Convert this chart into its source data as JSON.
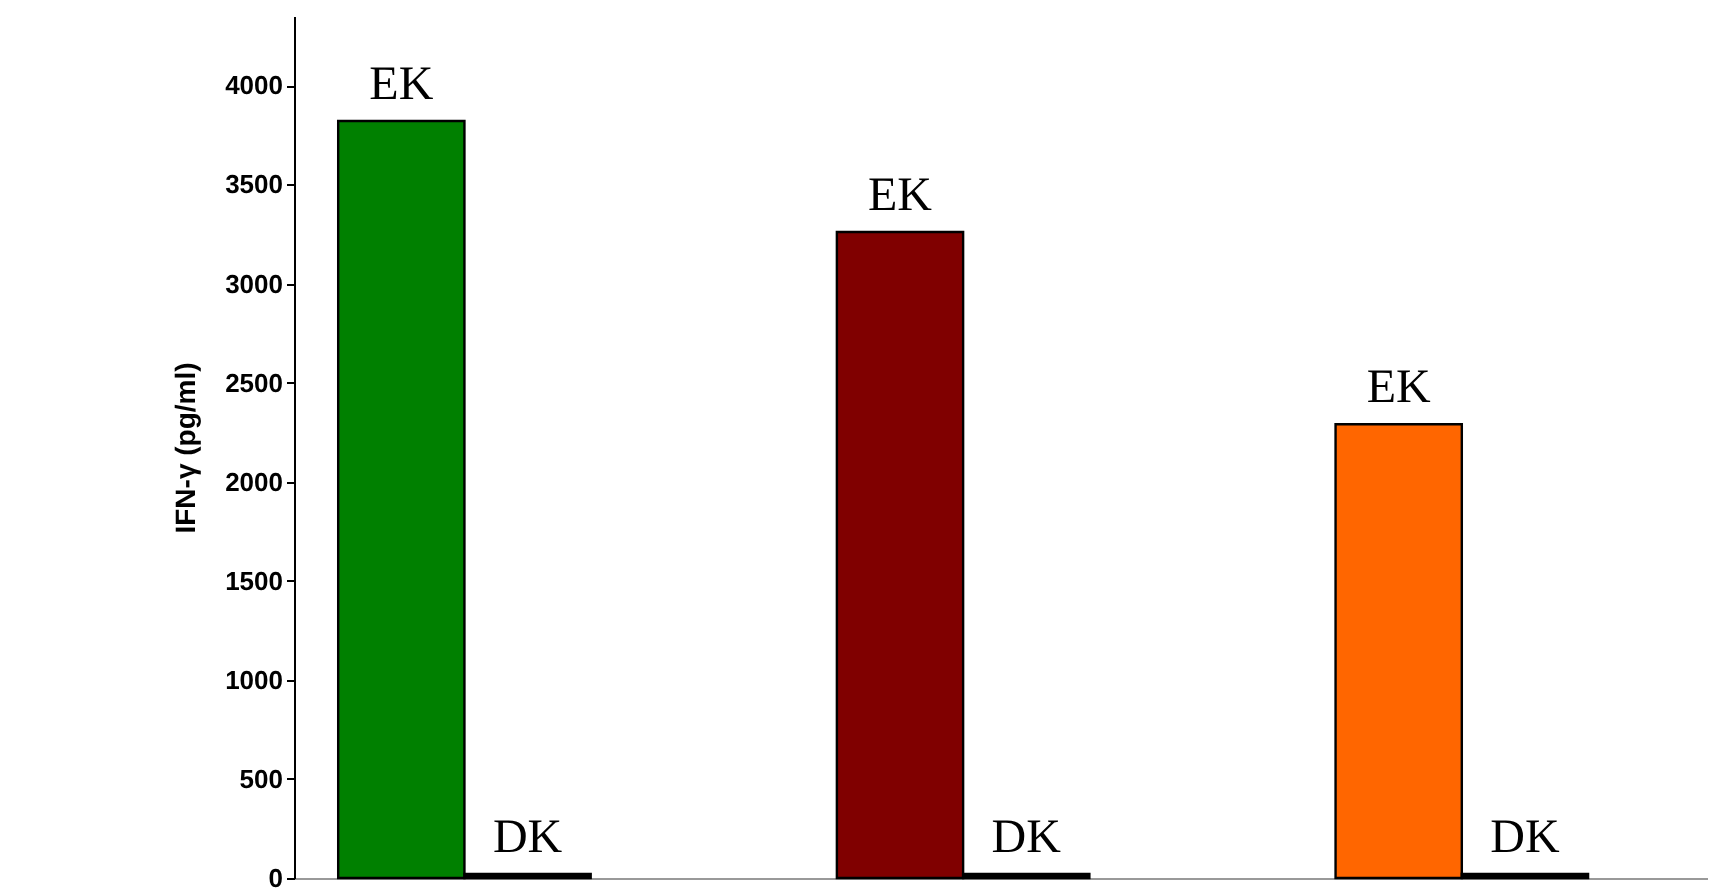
{
  "chart_data": {
    "type": "bar",
    "categories": [
      "EK",
      "DK",
      "EK",
      "DK",
      "EK",
      "DK"
    ],
    "values": [
      3820,
      20,
      3260,
      20,
      2290,
      20
    ],
    "colors": [
      "#008000",
      "#000000",
      "#800000",
      "#000000",
      "#ff6600",
      "#000000"
    ],
    "ylabel": "IFN-γ (pg/ml)",
    "ylim": [
      0,
      4350
    ],
    "yticks": [
      0,
      500,
      1000,
      1500,
      2000,
      2500,
      3000,
      3500,
      4000
    ],
    "grid": false
  }
}
